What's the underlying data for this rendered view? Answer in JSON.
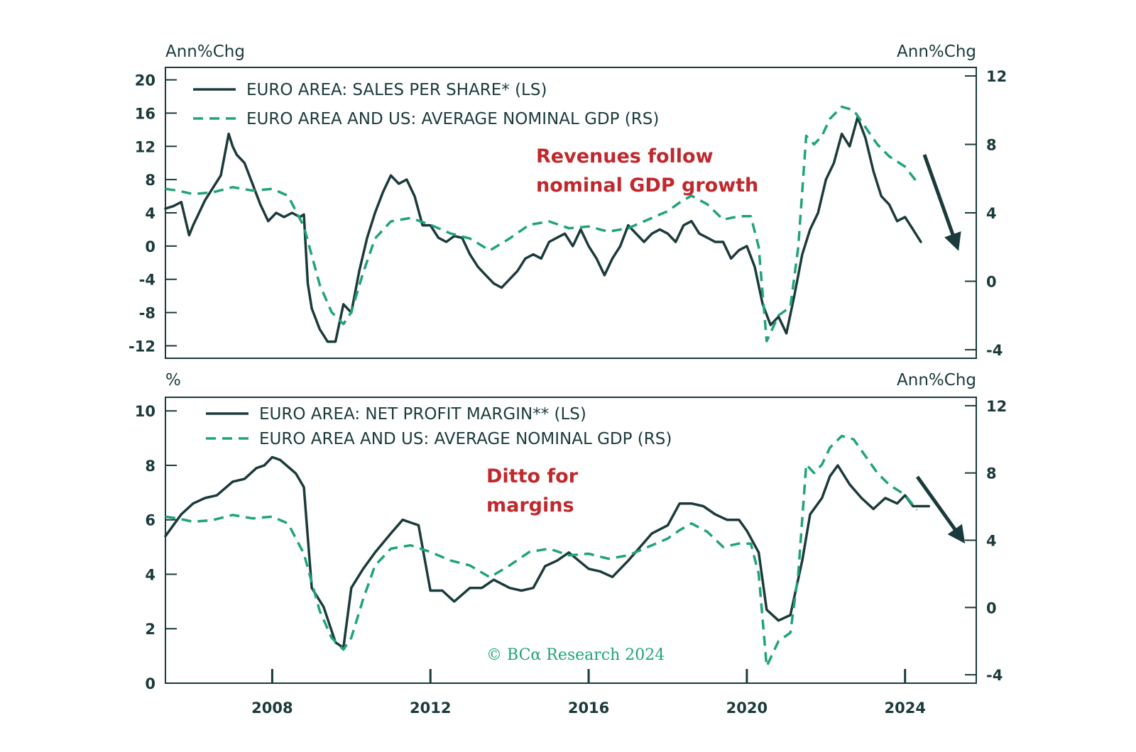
{
  "colors": {
    "dark": "#1b3a3b",
    "green": "#1fa37a",
    "red": "#c0282d",
    "frame": "#1b3a3b"
  },
  "copyright": "© BCα Research 2024",
  "chart_data": [
    {
      "type": "line",
      "left_unit": "Ann%Chg",
      "right_unit": "Ann%Chg",
      "ylim_left": [
        -13.5,
        21.5
      ],
      "ylim_right": [
        -4.5,
        12.5
      ],
      "xlim": [
        2005.3,
        2025.8
      ],
      "left_ticks": [
        "20",
        "16",
        "12",
        "8",
        "4",
        "0",
        "-4",
        "-8",
        "-12"
      ],
      "right_ticks": [
        "12",
        "8",
        "4",
        "0",
        "-4"
      ],
      "annotation": [
        "Revenues follow",
        "nominal GDP growth"
      ],
      "series": [
        {
          "name": "EURO AREA: SALES PER SHARE* (LS)",
          "axis": "left",
          "style": "solid",
          "x": [
            2005.3,
            2005.5,
            2005.7,
            2005.9,
            2006.0,
            2006.1,
            2006.3,
            2006.5,
            2006.7,
            2006.9,
            2007.0,
            2007.1,
            2007.3,
            2007.5,
            2007.7,
            2007.9,
            2008.1,
            2008.3,
            2008.5,
            2008.7,
            2008.8,
            2008.9,
            2009.0,
            2009.2,
            2009.4,
            2009.6,
            2009.8,
            2010.0,
            2010.2,
            2010.4,
            2010.6,
            2010.8,
            2011.0,
            2011.2,
            2011.4,
            2011.6,
            2011.8,
            2012.0,
            2012.2,
            2012.4,
            2012.6,
            2012.8,
            2013.0,
            2013.2,
            2013.4,
            2013.6,
            2013.8,
            2014.0,
            2014.2,
            2014.4,
            2014.6,
            2014.8,
            2015.0,
            2015.2,
            2015.4,
            2015.6,
            2015.8,
            2016.0,
            2016.2,
            2016.4,
            2016.6,
            2016.8,
            2017.0,
            2017.2,
            2017.4,
            2017.6,
            2017.8,
            2018.0,
            2018.2,
            2018.4,
            2018.6,
            2018.8,
            2019.0,
            2019.2,
            2019.4,
            2019.6,
            2019.8,
            2020.0,
            2020.2,
            2020.4,
            2020.6,
            2020.8,
            2021.0,
            2021.2,
            2021.4,
            2021.6,
            2021.8,
            2022.0,
            2022.2,
            2022.4,
            2022.6,
            2022.8,
            2023.0,
            2023.2,
            2023.4,
            2023.6,
            2023.8,
            2024.0,
            2024.2,
            2024.4
          ],
          "values": [
            4.5,
            4.8,
            5.3,
            1.3,
            2.5,
            3.5,
            5.5,
            7.0,
            8.5,
            13.5,
            12.0,
            11.0,
            10.0,
            7.5,
            5.0,
            3.0,
            4.0,
            3.5,
            4.0,
            3.5,
            3.8,
            -4.5,
            -7.5,
            -10.0,
            -11.5,
            -11.5,
            -7.0,
            -8.0,
            -3.0,
            1.0,
            4.0,
            6.5,
            8.5,
            7.5,
            8.0,
            6.0,
            2.5,
            2.5,
            1.0,
            0.5,
            1.2,
            1.0,
            -1.0,
            -2.5,
            -3.5,
            -4.5,
            -5.0,
            -4.0,
            -3.0,
            -1.5,
            -1.0,
            -1.5,
            0.5,
            1.0,
            1.5,
            0.0,
            2.0,
            0.0,
            -1.5,
            -3.5,
            -1.5,
            0.0,
            2.5,
            1.5,
            0.5,
            1.5,
            2.0,
            1.5,
            0.5,
            2.5,
            3.0,
            1.5,
            1.0,
            0.5,
            0.5,
            -1.5,
            -0.5,
            0.0,
            -2.5,
            -7.0,
            -9.5,
            -8.5,
            -10.5,
            -6.0,
            -1.0,
            2.0,
            4.0,
            8.0,
            10.0,
            13.5,
            12.0,
            15.5,
            13.0,
            9.0,
            6.0,
            5.0,
            3.0,
            3.5,
            2.0,
            0.5
          ]
        },
        {
          "name": "EURO AREA AND US: AVERAGE NOMINAL GDP (RS)",
          "axis": "right",
          "style": "dashed",
          "x": [
            2005.3,
            2005.6,
            2006.0,
            2006.5,
            2007.0,
            2007.5,
            2008.0,
            2008.4,
            2008.8,
            2009.2,
            2009.5,
            2009.8,
            2010.0,
            2010.3,
            2010.6,
            2011.0,
            2011.5,
            2012.0,
            2012.5,
            2013.0,
            2013.5,
            2014.0,
            2014.5,
            2015.0,
            2015.5,
            2016.0,
            2016.5,
            2017.0,
            2017.5,
            2018.0,
            2018.3,
            2018.6,
            2019.0,
            2019.4,
            2019.8,
            2020.1,
            2020.3,
            2020.5,
            2020.8,
            2021.1,
            2021.3,
            2021.5,
            2021.7,
            2021.9,
            2022.1,
            2022.4,
            2022.7,
            2023.0,
            2023.3,
            2023.6,
            2024.0,
            2024.3
          ],
          "values": [
            5.4,
            5.3,
            5.1,
            5.2,
            5.5,
            5.3,
            5.4,
            5.0,
            3.2,
            -0.2,
            -1.8,
            -2.5,
            -1.8,
            0.5,
            2.5,
            3.5,
            3.7,
            3.3,
            2.8,
            2.5,
            1.8,
            2.5,
            3.3,
            3.5,
            3.1,
            3.2,
            2.9,
            3.1,
            3.6,
            4.1,
            4.6,
            5.0,
            4.5,
            3.6,
            3.8,
            3.8,
            2.0,
            -3.5,
            -2.0,
            -1.5,
            2.0,
            8.5,
            8.0,
            8.5,
            9.5,
            10.2,
            10.0,
            9.0,
            8.0,
            7.3,
            6.7,
            5.8
          ]
        }
      ]
    },
    {
      "type": "line",
      "left_unit": "%",
      "right_unit": "Ann%Chg",
      "ylim_left": [
        0,
        10.5
      ],
      "ylim_right": [
        -4.5,
        12.5
      ],
      "xlim": [
        2005.3,
        2025.8
      ],
      "left_ticks": [
        "10",
        "8",
        "6",
        "4",
        "2",
        "0"
      ],
      "right_ticks": [
        "12",
        "8",
        "4",
        "0",
        "-4"
      ],
      "x_ticks": [
        "2008",
        "2012",
        "2016",
        "2020",
        "2024"
      ],
      "annotation": [
        "Ditto for",
        "margins"
      ],
      "series": [
        {
          "name": "EURO AREA: NET PROFIT MARGIN** (LS)",
          "axis": "left",
          "style": "solid",
          "x": [
            2005.3,
            2005.7,
            2006.0,
            2006.3,
            2006.6,
            2007.0,
            2007.3,
            2007.6,
            2007.8,
            2008.0,
            2008.2,
            2008.6,
            2008.8,
            2009.0,
            2009.3,
            2009.6,
            2009.8,
            2010.0,
            2010.3,
            2010.6,
            2011.0,
            2011.3,
            2011.5,
            2011.7,
            2012.0,
            2012.3,
            2012.6,
            2013.0,
            2013.3,
            2013.6,
            2014.0,
            2014.3,
            2014.6,
            2014.9,
            2015.2,
            2015.5,
            2016.0,
            2016.3,
            2016.6,
            2017.0,
            2017.3,
            2017.6,
            2018.0,
            2018.3,
            2018.6,
            2018.9,
            2019.2,
            2019.5,
            2019.8,
            2020.0,
            2020.3,
            2020.5,
            2020.8,
            2021.1,
            2021.4,
            2021.6,
            2021.9,
            2022.1,
            2022.3,
            2022.6,
            2022.9,
            2023.2,
            2023.5,
            2023.8,
            2024.0,
            2024.2,
            2024.6
          ],
          "values": [
            5.4,
            6.2,
            6.6,
            6.8,
            6.9,
            7.4,
            7.5,
            7.9,
            8.0,
            8.3,
            8.2,
            7.7,
            7.2,
            3.5,
            2.8,
            1.5,
            1.3,
            3.5,
            4.2,
            4.8,
            5.5,
            6.0,
            5.9,
            5.8,
            3.4,
            3.4,
            3.0,
            3.5,
            3.5,
            3.8,
            3.5,
            3.4,
            3.5,
            4.3,
            4.5,
            4.8,
            4.2,
            4.1,
            3.9,
            4.5,
            5.0,
            5.5,
            5.8,
            6.6,
            6.6,
            6.5,
            6.2,
            6.0,
            6.0,
            5.6,
            4.8,
            2.7,
            2.3,
            2.5,
            4.5,
            6.2,
            6.8,
            7.6,
            8.0,
            7.3,
            6.8,
            6.4,
            6.8,
            6.6,
            6.9,
            6.5,
            6.5
          ]
        },
        {
          "name": "EURO AREA AND US: AVERAGE NOMINAL GDP (RS)",
          "axis": "right",
          "style": "dashed",
          "x": [
            2005.3,
            2005.6,
            2006.0,
            2006.5,
            2007.0,
            2007.5,
            2008.0,
            2008.4,
            2008.8,
            2009.2,
            2009.5,
            2009.8,
            2010.0,
            2010.3,
            2010.6,
            2011.0,
            2011.5,
            2012.0,
            2012.5,
            2013.0,
            2013.5,
            2014.0,
            2014.5,
            2015.0,
            2015.5,
            2016.0,
            2016.5,
            2017.0,
            2017.5,
            2018.0,
            2018.3,
            2018.6,
            2019.0,
            2019.4,
            2019.8,
            2020.1,
            2020.3,
            2020.5,
            2020.8,
            2021.1,
            2021.3,
            2021.5,
            2021.7,
            2021.9,
            2022.1,
            2022.4,
            2022.7,
            2023.0,
            2023.3,
            2023.6,
            2024.0,
            2024.3
          ],
          "values": [
            5.4,
            5.3,
            5.1,
            5.2,
            5.5,
            5.3,
            5.4,
            5.0,
            3.2,
            -0.2,
            -1.8,
            -2.5,
            -1.8,
            0.5,
            2.5,
            3.5,
            3.7,
            3.3,
            2.8,
            2.5,
            1.8,
            2.5,
            3.3,
            3.5,
            3.1,
            3.2,
            2.9,
            3.1,
            3.6,
            4.1,
            4.6,
            5.0,
            4.5,
            3.6,
            3.8,
            3.8,
            2.0,
            -3.5,
            -2.0,
            -1.5,
            2.0,
            8.5,
            8.0,
            8.5,
            9.5,
            10.2,
            10.0,
            9.0,
            8.0,
            7.3,
            6.7,
            5.8
          ]
        }
      ]
    }
  ]
}
